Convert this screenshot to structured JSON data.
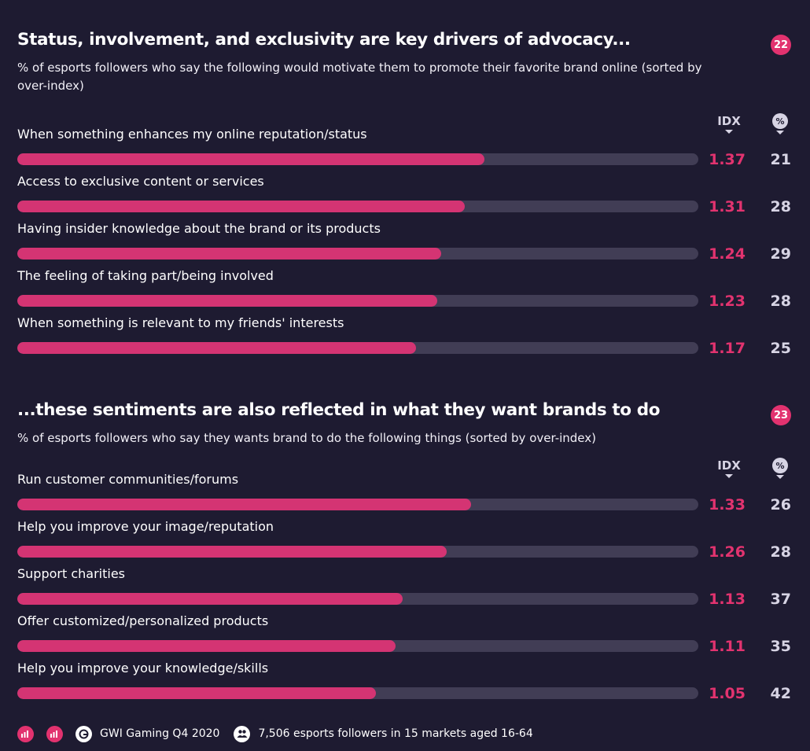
{
  "header": {
    "title": "Status, involvement, and exclusivity are key drivers of advocacy...",
    "subtitle": "% of esports followers who say the following would motivate them to promote their favorite brand online (sorted by over-index)",
    "page_number": "22"
  },
  "second": {
    "title": "...these sentiments are also reflected in what they want brands to do",
    "subtitle": "% of esports followers who say they wants brand to do the following things (sorted by over-index)",
    "page_number": "23"
  },
  "columns": {
    "idx": "IDX",
    "pct": "%"
  },
  "footer": {
    "source": "GWI Gaming Q4 2020",
    "base": "7,506 esports followers in 15 markets aged 16-64"
  },
  "colors": {
    "background": "#1e1b31",
    "accent": "#e2326f",
    "bar_fill": "#d43473",
    "bar_track": "#413d55",
    "muted": "#d7d4e4"
  },
  "chart_data": [
    {
      "type": "bar",
      "orientation": "horizontal",
      "title": "Status, involvement, and exclusivity are key drivers of advocacy...",
      "subtitle": "% of esports followers who say the following would motivate them to promote their favorite brand online (sorted by over-index)",
      "categories": [
        "When something enhances my online reputation/status",
        "Access to exclusive content or services",
        "Having insider knowledge about the brand or its products",
        "The feeling of taking part/being involved",
        "When something is relevant to my friends' interests"
      ],
      "idx_labels": [
        "1.37",
        "1.31",
        "1.24",
        "1.23",
        "1.17"
      ],
      "series": [
        {
          "name": "IDX",
          "values": [
            1.37,
            1.31,
            1.24,
            1.23,
            1.17
          ]
        },
        {
          "name": "%",
          "values": [
            21,
            28,
            29,
            28,
            25
          ]
        }
      ],
      "bar_fraction": [
        0.686,
        0.657,
        0.622,
        0.617,
        0.586
      ]
    },
    {
      "type": "bar",
      "orientation": "horizontal",
      "title": "...these sentiments are also reflected in what they want brands to do",
      "subtitle": "% of esports followers who say they wants brand to do the following things (sorted by over-index)",
      "categories": [
        "Run customer communities/forums",
        "Help you improve your image/reputation",
        "Support charities",
        "Offer customized/personalized products",
        "Help you improve your knowledge/skills"
      ],
      "idx_labels": [
        "1.33",
        "1.26",
        "1.13",
        "1.11",
        "1.05"
      ],
      "series": [
        {
          "name": "IDX",
          "values": [
            1.33,
            1.26,
            1.13,
            1.11,
            1.05
          ]
        },
        {
          "name": "%",
          "values": [
            26,
            28,
            37,
            35,
            42
          ]
        }
      ],
      "bar_fraction": [
        0.666,
        0.631,
        0.566,
        0.556,
        0.526
      ]
    }
  ]
}
